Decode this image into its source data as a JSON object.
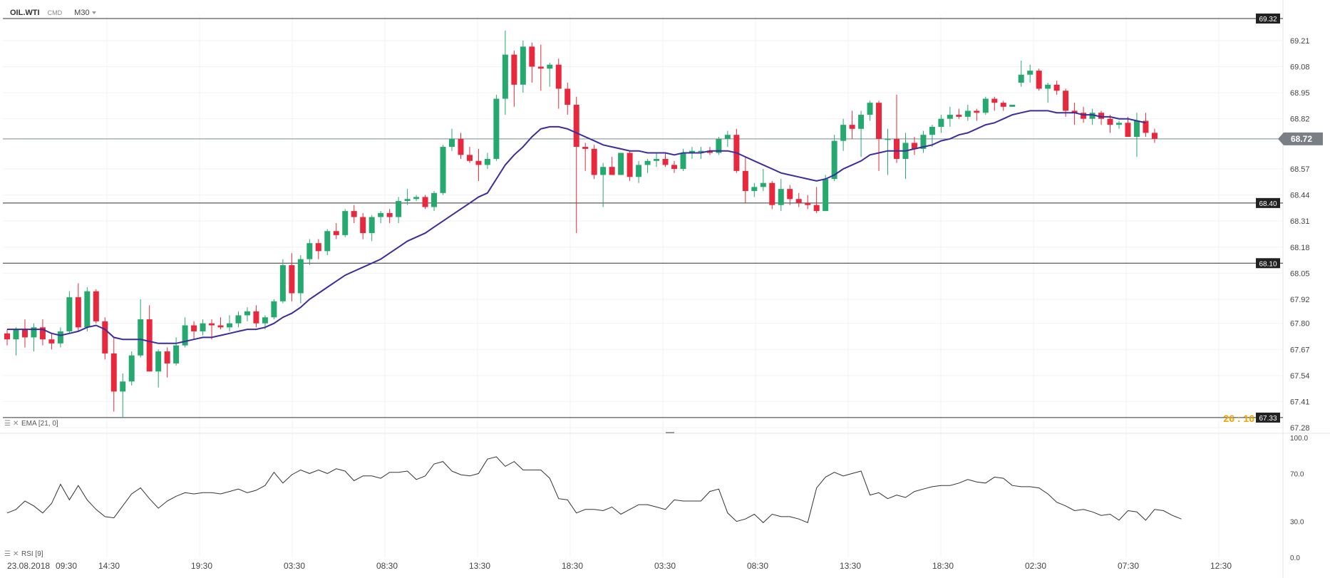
{
  "header": {
    "symbol": "OIL.WTI",
    "market": "CMD",
    "timeframe": "M30"
  },
  "current_price": "68.72",
  "colors": {
    "up": "#26a96f",
    "down": "#e8283c",
    "ema": "#3c2d9f",
    "rsi": "#333333",
    "price_tag": "#7a7f86",
    "level_tag": "#222222",
    "countdown": "#f0a500"
  },
  "indicators": {
    "ema_label": "EMA [21, 0]",
    "rsi_label": "RSI [9]"
  },
  "countdown": "26 : 16",
  "chart_data": [
    {
      "type": "candlestick",
      "title": "OIL.WTI",
      "timeframe": "M30",
      "y_ticks": [
        "69.21",
        "69.08",
        "68.95",
        "68.82",
        "68.72",
        "68.57",
        "68.44",
        "68.31",
        "68.18",
        "68.05",
        "67.92",
        "67.80",
        "67.67",
        "67.54",
        "67.41",
        "67.28"
      ],
      "horizontal_levels": [
        "69.32",
        "68.40",
        "68.10",
        "67.33"
      ],
      "x_labels": [
        "23.08.2018",
        "09:30",
        "14:30",
        "19:30",
        "03:30",
        "08:30",
        "13:30",
        "18:30",
        "03:30",
        "08:30",
        "13:30",
        "18:30",
        "02:30",
        "07:30",
        "12:30"
      ],
      "candles": [
        [
          67.75,
          67.77,
          67.69,
          67.72
        ],
        [
          67.72,
          67.78,
          67.64,
          67.77
        ],
        [
          67.77,
          67.82,
          67.68,
          67.73
        ],
        [
          67.73,
          67.8,
          67.66,
          67.78
        ],
        [
          67.78,
          67.82,
          67.69,
          67.72
        ],
        [
          67.72,
          67.75,
          67.67,
          67.7
        ],
        [
          67.7,
          67.78,
          67.68,
          67.76
        ],
        [
          67.76,
          67.96,
          67.75,
          67.93
        ],
        [
          67.93,
          68.0,
          67.76,
          67.78
        ],
        [
          67.78,
          67.98,
          67.76,
          67.96
        ],
        [
          67.96,
          67.97,
          67.8,
          67.81
        ],
        [
          67.81,
          67.83,
          67.62,
          67.65
        ],
        [
          67.65,
          67.73,
          67.36,
          67.46
        ],
        [
          67.46,
          67.55,
          67.33,
          67.51
        ],
        [
          67.51,
          67.66,
          67.49,
          67.64
        ],
        [
          67.64,
          67.92,
          67.63,
          67.82
        ],
        [
          67.82,
          67.89,
          67.56,
          67.56
        ],
        [
          67.56,
          67.67,
          67.48,
          67.66
        ],
        [
          67.66,
          67.68,
          67.53,
          67.6
        ],
        [
          67.6,
          67.73,
          67.59,
          67.69
        ],
        [
          67.69,
          67.83,
          67.68,
          67.79
        ],
        [
          67.79,
          67.81,
          67.72,
          67.76
        ],
        [
          67.76,
          67.82,
          67.74,
          67.8
        ],
        [
          67.8,
          67.82,
          67.72,
          67.79
        ],
        [
          67.79,
          67.83,
          67.77,
          67.78
        ],
        [
          67.78,
          67.84,
          67.76,
          67.8
        ],
        [
          67.8,
          67.86,
          67.78,
          67.84
        ],
        [
          67.84,
          67.88,
          67.81,
          67.86
        ],
        [
          67.86,
          67.89,
          67.78,
          67.8
        ],
        [
          67.8,
          67.84,
          67.77,
          67.83
        ],
        [
          67.83,
          67.92,
          67.82,
          67.91
        ],
        [
          67.91,
          68.12,
          67.9,
          68.09
        ],
        [
          68.09,
          68.15,
          67.91,
          67.95
        ],
        [
          67.95,
          68.14,
          67.9,
          68.12
        ],
        [
          68.12,
          68.22,
          68.09,
          68.2
        ],
        [
          68.2,
          68.22,
          68.12,
          68.16
        ],
        [
          68.16,
          68.27,
          68.14,
          68.26
        ],
        [
          68.26,
          68.3,
          68.22,
          68.24
        ],
        [
          68.24,
          68.37,
          68.23,
          68.36
        ],
        [
          68.36,
          68.39,
          68.3,
          68.33
        ],
        [
          68.33,
          68.35,
          68.22,
          68.25
        ],
        [
          68.25,
          68.34,
          68.21,
          68.33
        ],
        [
          68.33,
          68.36,
          68.3,
          68.35
        ],
        [
          68.35,
          68.37,
          68.3,
          68.33
        ],
        [
          68.33,
          68.43,
          68.3,
          68.41
        ],
        [
          68.41,
          68.47,
          68.39,
          68.42
        ],
        [
          68.42,
          68.44,
          68.41,
          68.43
        ],
        [
          68.43,
          68.44,
          68.37,
          68.38
        ],
        [
          68.38,
          68.46,
          68.36,
          68.45
        ],
        [
          68.45,
          68.69,
          68.44,
          68.68
        ],
        [
          68.68,
          68.77,
          68.66,
          68.72
        ],
        [
          68.72,
          68.75,
          68.62,
          68.64
        ],
        [
          68.64,
          68.68,
          68.6,
          68.61
        ],
        [
          68.61,
          68.67,
          68.51,
          68.59
        ],
        [
          68.59,
          68.65,
          68.57,
          68.62
        ],
        [
          68.62,
          68.94,
          68.61,
          68.92
        ],
        [
          68.92,
          69.26,
          68.84,
          69.14
        ],
        [
          69.14,
          69.16,
          68.88,
          68.99
        ],
        [
          68.99,
          69.21,
          68.95,
          69.18
        ],
        [
          69.18,
          69.2,
          69.0,
          69.08
        ],
        [
          69.08,
          69.19,
          68.96,
          69.07
        ],
        [
          69.07,
          69.1,
          68.98,
          69.09
        ],
        [
          69.09,
          69.12,
          68.87,
          68.97
        ],
        [
          68.97,
          69.0,
          68.84,
          68.89
        ],
        [
          68.89,
          68.93,
          68.25,
          68.68
        ],
        [
          68.68,
          68.7,
          68.56,
          68.67
        ],
        [
          68.67,
          68.69,
          68.52,
          68.54
        ],
        [
          68.54,
          68.6,
          68.38,
          68.58
        ],
        [
          68.58,
          68.63,
          68.54,
          68.54
        ],
        [
          68.54,
          68.65,
          68.54,
          68.65
        ],
        [
          68.65,
          68.66,
          68.51,
          68.53
        ],
        [
          68.53,
          68.61,
          68.5,
          68.59
        ],
        [
          68.59,
          68.62,
          68.55,
          68.61
        ],
        [
          68.61,
          68.65,
          68.58,
          68.62
        ],
        [
          68.62,
          68.65,
          68.58,
          68.59
        ],
        [
          68.59,
          68.61,
          68.55,
          68.57
        ],
        [
          68.57,
          68.67,
          68.56,
          68.65
        ],
        [
          68.65,
          68.68,
          68.62,
          68.66
        ],
        [
          68.66,
          68.68,
          68.62,
          68.66
        ],
        [
          68.66,
          68.68,
          68.64,
          68.65
        ],
        [
          68.65,
          68.73,
          68.64,
          68.72
        ],
        [
          68.72,
          68.76,
          68.68,
          68.74
        ],
        [
          68.74,
          68.77,
          68.55,
          68.56
        ],
        [
          68.56,
          68.63,
          68.4,
          68.46
        ],
        [
          68.46,
          68.5,
          68.43,
          68.48
        ],
        [
          68.48,
          68.57,
          68.46,
          68.5
        ],
        [
          68.5,
          68.51,
          68.37,
          68.39
        ],
        [
          68.39,
          68.52,
          68.36,
          68.47
        ],
        [
          68.47,
          68.49,
          68.39,
          68.42
        ],
        [
          68.42,
          68.45,
          68.38,
          68.4
        ],
        [
          68.4,
          68.44,
          68.37,
          68.39
        ],
        [
          68.39,
          68.48,
          68.35,
          68.36
        ],
        [
          68.36,
          68.54,
          68.36,
          68.52
        ],
        [
          68.52,
          68.74,
          68.51,
          68.71
        ],
        [
          68.71,
          68.82,
          68.66,
          68.79
        ],
        [
          68.79,
          68.86,
          68.72,
          68.77
        ],
        [
          68.77,
          68.86,
          68.63,
          68.84
        ],
        [
          68.84,
          68.91,
          68.81,
          68.9
        ],
        [
          68.9,
          68.91,
          68.56,
          68.72
        ],
        [
          68.72,
          68.77,
          68.54,
          68.72
        ],
        [
          68.72,
          68.94,
          68.6,
          68.62
        ],
        [
          68.62,
          68.75,
          68.52,
          68.7
        ],
        [
          68.7,
          68.73,
          68.64,
          68.67
        ],
        [
          68.67,
          68.76,
          68.65,
          68.74
        ],
        [
          68.74,
          68.79,
          68.68,
          68.78
        ],
        [
          68.78,
          68.84,
          68.75,
          68.82
        ],
        [
          68.82,
          68.88,
          68.78,
          68.84
        ],
        [
          68.84,
          68.87,
          68.82,
          68.83
        ],
        [
          68.83,
          68.89,
          68.81,
          68.86
        ],
        [
          68.86,
          68.87,
          68.81,
          68.85
        ],
        [
          68.85,
          68.93,
          68.84,
          68.92
        ],
        [
          68.92,
          68.93,
          68.86,
          68.9
        ],
        [
          68.9,
          68.91,
          68.86,
          68.88
        ],
        [
          68.88,
          68.89,
          68.88,
          68.89
        ],
        [
          69.0,
          69.11,
          68.98,
          69.04
        ],
        [
          69.04,
          69.09,
          69.0,
          69.06
        ],
        [
          69.06,
          69.07,
          68.96,
          68.97
        ],
        [
          68.97,
          69.0,
          68.9,
          68.99
        ],
        [
          68.99,
          69.01,
          68.94,
          68.96
        ],
        [
          68.96,
          68.97,
          68.83,
          68.86
        ],
        [
          68.86,
          68.9,
          68.79,
          68.85
        ],
        [
          68.85,
          68.88,
          68.8,
          68.82
        ],
        [
          68.82,
          68.87,
          68.79,
          68.85
        ],
        [
          68.85,
          68.86,
          68.79,
          68.82
        ],
        [
          68.82,
          68.84,
          68.75,
          68.79
        ],
        [
          68.79,
          68.81,
          68.77,
          68.8
        ],
        [
          68.8,
          68.83,
          68.73,
          68.73
        ],
        [
          68.73,
          68.85,
          68.63,
          68.81
        ],
        [
          68.81,
          68.85,
          68.73,
          68.75
        ],
        [
          68.75,
          68.77,
          68.7,
          68.72
        ]
      ],
      "ema": [
        67.77,
        67.77,
        67.77,
        67.77,
        67.77,
        67.75,
        67.74,
        67.75,
        67.76,
        67.78,
        67.79,
        67.77,
        67.73,
        67.72,
        67.72,
        67.72,
        67.71,
        67.7,
        67.7,
        67.7,
        67.71,
        67.72,
        67.73,
        67.73,
        67.74,
        67.75,
        67.76,
        67.77,
        67.77,
        67.78,
        67.8,
        67.83,
        67.85,
        67.88,
        67.92,
        67.95,
        67.98,
        68.01,
        68.04,
        68.06,
        68.08,
        68.1,
        68.12,
        68.15,
        68.18,
        68.21,
        68.23,
        68.25,
        68.28,
        68.31,
        68.34,
        68.37,
        68.4,
        68.43,
        68.45,
        68.52,
        68.59,
        68.64,
        68.68,
        68.73,
        68.77,
        68.78,
        68.78,
        68.77,
        68.75,
        68.73,
        68.71,
        68.69,
        68.68,
        68.67,
        68.66,
        68.66,
        68.65,
        68.65,
        68.65,
        68.64,
        68.65,
        68.65,
        68.65,
        68.66,
        68.66,
        68.66,
        68.65,
        68.63,
        68.61,
        68.59,
        68.57,
        68.55,
        68.54,
        68.53,
        68.52,
        68.51,
        68.52,
        68.54,
        68.57,
        68.59,
        68.61,
        68.64,
        68.65,
        68.66,
        68.66,
        68.66,
        68.67,
        68.68,
        68.69,
        68.71,
        68.72,
        68.74,
        68.75,
        68.77,
        68.79,
        68.8,
        68.82,
        68.84,
        68.85,
        68.86,
        68.86,
        68.86,
        68.85,
        68.85,
        68.85,
        68.84,
        68.84,
        68.83,
        68.83,
        68.82,
        68.82,
        68.81,
        68.8
      ],
      "series": [
        {
          "name": "EMA [21, 0]",
          "type": "line"
        }
      ]
    },
    {
      "type": "line",
      "title": "RSI [9]",
      "y_ticks": [
        "100.0",
        "70.0",
        "30.0",
        "0.0"
      ],
      "ylim": [
        0,
        100
      ],
      "values": [
        37,
        40,
        47,
        43,
        37,
        45,
        61,
        48,
        60,
        48,
        40,
        34,
        33,
        43,
        53,
        58,
        49,
        41,
        47,
        51,
        54,
        53,
        54,
        54,
        53,
        55,
        57,
        54,
        56,
        60,
        71,
        62,
        69,
        73,
        70,
        73,
        70,
        74,
        72,
        64,
        68,
        68,
        66,
        71,
        71,
        72,
        65,
        68,
        78,
        80,
        72,
        69,
        68,
        70,
        82,
        84,
        76,
        80,
        73,
        73,
        73,
        66,
        49,
        48,
        37,
        40,
        40,
        39,
        42,
        36,
        40,
        44,
        44,
        42,
        40,
        48,
        47,
        47,
        47,
        55,
        57,
        37,
        30,
        32,
        36,
        29,
        36,
        34,
        34,
        32,
        29,
        58,
        67,
        71,
        68,
        70,
        72,
        52,
        54,
        49,
        52,
        50,
        55,
        57,
        59,
        60,
        60,
        62,
        65,
        63,
        62,
        67,
        66,
        60,
        59,
        59,
        58,
        53,
        46,
        43,
        39,
        40,
        38,
        35,
        36,
        31,
        39,
        38,
        31,
        40,
        39,
        35,
        32
      ],
      "series": [
        {
          "name": "RSI [9]",
          "type": "line"
        }
      ]
    }
  ]
}
